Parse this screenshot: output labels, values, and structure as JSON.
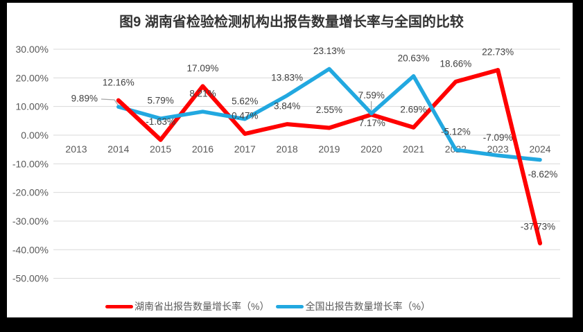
{
  "window": {
    "background": "#000000",
    "canvas_background": "#FFFFFF"
  },
  "chart_data": {
    "type": "line",
    "title": "图9 湖南省检验检测机构出报告数量增长率与全国的比较",
    "categories": [
      "2013",
      "2014",
      "2015",
      "2016",
      "2017",
      "2018",
      "2019",
      "2020",
      "2021",
      "2022",
      "2023",
      "2024"
    ],
    "series": [
      {
        "name": "湖南省出报告数量增长率（%）",
        "color": "#FF0000",
        "values": [
          null,
          12.16,
          -1.63,
          17.09,
          0.47,
          3.84,
          2.55,
          7.17,
          2.69,
          18.66,
          22.73,
          -37.73
        ],
        "labels": [
          null,
          "12.16%",
          "-1.63%",
          "17.09%",
          "0.47%",
          "3.84%",
          "2.55%",
          "7.17%",
          "2.69%",
          "18.66%",
          "22.73%",
          "-37.73%"
        ]
      },
      {
        "name": "全国出报告数量增长率（%）",
        "color": "#22A8E0",
        "values": [
          null,
          9.89,
          5.79,
          8.21,
          5.62,
          13.83,
          23.13,
          7.59,
          20.63,
          -5.12,
          -7.09,
          -8.62
        ],
        "labels": [
          null,
          "9.89%",
          "5.79%",
          "8.21%",
          "5.62%",
          "13.83%",
          "23.13%",
          "7.59%",
          "20.63%",
          "-5.12%",
          "-7.09%",
          "-8.62%"
        ]
      }
    ],
    "y_axis": {
      "tick_labels": [
        "30.00%",
        "20.00%",
        "10.00%",
        "0.00%",
        "-10.00%",
        "-20.00%",
        "-30.00%",
        "-40.00%",
        "-50.00%"
      ],
      "tick_values": [
        30,
        20,
        10,
        0,
        -10,
        -20,
        -30,
        -40,
        -50
      ],
      "min": -50,
      "max": 30
    },
    "grid": true,
    "grid_color": "#D9D9D9",
    "leader_line_color": "#A6A6A6",
    "legend_position": "bottom"
  }
}
